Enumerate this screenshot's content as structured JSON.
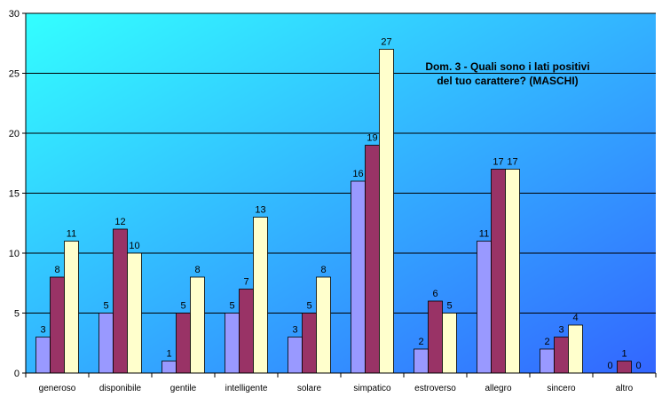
{
  "chart_data": {
    "type": "bar",
    "title_lines": [
      "Dom. 3 - Quali sono i lati positivi",
      "del tuo carattere? (MASCHI)"
    ],
    "categories": [
      "generoso",
      "disponibile",
      "gentile",
      "intelligente",
      "solare",
      "simpatico",
      "estroverso",
      "allegro",
      "sincero",
      "altro"
    ],
    "series": [
      {
        "values": [
          3,
          5,
          1,
          5,
          3,
          16,
          2,
          11,
          2,
          0
        ],
        "color": "#9999ff"
      },
      {
        "values": [
          8,
          12,
          5,
          7,
          5,
          19,
          6,
          17,
          3,
          1
        ],
        "color": "#993366"
      },
      {
        "values": [
          11,
          10,
          8,
          13,
          8,
          27,
          5,
          17,
          4,
          0
        ],
        "color": "#ffffcc"
      }
    ],
    "y_ticks": [
      0,
      5,
      10,
      15,
      20,
      25,
      30
    ],
    "ylim": [
      0,
      30
    ],
    "grid": true,
    "legend": "none",
    "data_labels": true,
    "background_gradient": [
      "#33ffff",
      "#3366ff"
    ]
  }
}
